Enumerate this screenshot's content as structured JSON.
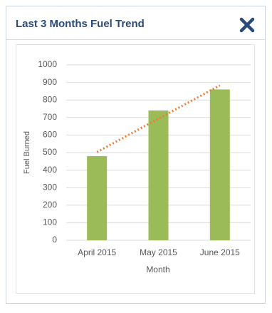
{
  "chart_data": {
    "type": "bar",
    "title": "Last 3 Months Fuel Trend",
    "categories": [
      "April 2015",
      "May 2015",
      "June 2015"
    ],
    "values": [
      480,
      740,
      860
    ],
    "color": "#9bbb59",
    "trendline": {
      "color": "#ed7d31",
      "values": [
        503,
        693,
        883
      ]
    },
    "x_label": "Month",
    "y_label": "Fuel Burned",
    "ylim": [
      0,
      1000
    ],
    "yticks": [
      0,
      100,
      200,
      300,
      400,
      500,
      600,
      700,
      800,
      900,
      1000
    ],
    "grid": true
  }
}
